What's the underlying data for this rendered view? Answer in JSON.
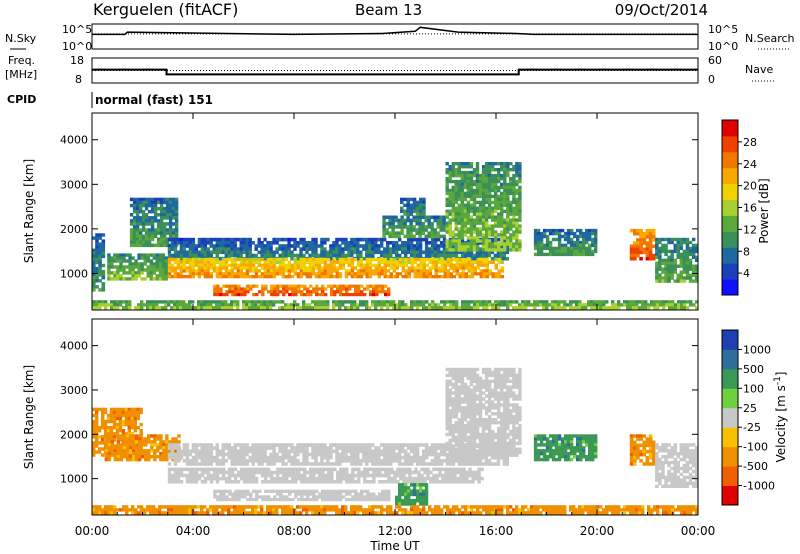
{
  "header": {
    "title": "Kerguelen (fitACF)",
    "beam": "Beam 13",
    "date": "09/Oct/2014"
  },
  "labels": {
    "nsky": "N.Sky",
    "nsearch": "N.Search",
    "freq_line1": "Freq.",
    "freq_line2": "[MHz]",
    "nave": "Nave",
    "cpid": "CPID",
    "program": "normal (fast) 151",
    "xlabel": "Time UT"
  },
  "noise_axis": {
    "left_ticks": [
      "10^5",
      "10^0"
    ],
    "right_ticks": [
      "10^5",
      "10^0"
    ]
  },
  "freq_axis": {
    "left_ticks": [
      "18",
      "8"
    ],
    "right_ticks": [
      "60",
      "0"
    ]
  },
  "chart_data": [
    {
      "type": "line",
      "panel": "noise",
      "x_unit": "hours UT",
      "series": [
        {
          "name": "N.Sky",
          "x": [
            0,
            1.3,
            1.4,
            8,
            11.5,
            12.8,
            13.0,
            14.5,
            16.8,
            17.5,
            24
          ],
          "y": [
            3.1,
            3.1,
            3.6,
            3.1,
            3.3,
            3.8,
            4.7,
            3.6,
            3.3,
            3.1,
            3.1
          ]
        },
        {
          "name": "N.Search",
          "x": [
            0,
            24
          ],
          "y": [
            3.2,
            3.2
          ]
        }
      ]
    },
    {
      "type": "line",
      "panel": "frequency",
      "x_unit": "hours UT",
      "series": [
        {
          "name": "Freq.",
          "x": [
            0,
            2.95,
            2.95,
            16.9,
            16.9,
            24
          ],
          "y": [
            13.4,
            13.4,
            11.3,
            11.3,
            13.4,
            13.4
          ]
        },
        {
          "name": "Nave",
          "x": [
            0,
            24
          ],
          "y": [
            30,
            30
          ]
        }
      ]
    },
    {
      "type": "heatmap",
      "panel": "power",
      "title": "",
      "xlabel": "Time UT",
      "ylabel": "Slant Range [km]",
      "xlim": [
        0,
        24
      ],
      "ylim": [
        180,
        4600
      ],
      "x_ticks": [
        "00:00",
        "04:00",
        "08:00",
        "12:00",
        "16:00",
        "20:00",
        "00:00"
      ],
      "y_ticks": [
        1000,
        2000,
        3000,
        4000
      ],
      "colorbar": {
        "label": "Power [dB]",
        "ticks": [
          4,
          8,
          12,
          16,
          20,
          24,
          28
        ],
        "range": [
          0,
          32
        ],
        "colors": [
          "#1010ff",
          "#1a3fb8",
          "#1e68a0",
          "#3b8f5a",
          "#5aa83c",
          "#a8d030",
          "#f0d200",
          "#f8a800",
          "#f07800",
          "#f04000",
          "#e00000"
        ]
      },
      "regions": [
        {
          "t0": 0.0,
          "t1": 0.5,
          "r0": 600,
          "r1": 1900,
          "v": 8
        },
        {
          "t0": 0.6,
          "t1": 3.0,
          "r0": 850,
          "r1": 1450,
          "v": 12
        },
        {
          "t0": 1.5,
          "t1": 3.4,
          "r0": 1600,
          "r1": 2700,
          "v": 9
        },
        {
          "t0": 3.0,
          "t1": 16.5,
          "r0": 1300,
          "r1": 1800,
          "v": 7
        },
        {
          "t0": 3.0,
          "t1": 16.3,
          "r0": 900,
          "r1": 1350,
          "v": 22
        },
        {
          "t0": 4.8,
          "t1": 11.8,
          "r0": 500,
          "r1": 750,
          "v": 27
        },
        {
          "t0": 11.5,
          "t1": 14.0,
          "r0": 1800,
          "r1": 2300,
          "v": 10
        },
        {
          "t0": 14.0,
          "t1": 17.0,
          "r0": 1500,
          "r1": 3500,
          "v": 12
        },
        {
          "t0": 12.2,
          "t1": 13.2,
          "r0": 2300,
          "r1": 2700,
          "v": 8
        },
        {
          "t0": 17.5,
          "t1": 20.0,
          "r0": 1400,
          "r1": 2000,
          "v": 9
        },
        {
          "t0": 21.3,
          "t1": 22.3,
          "r0": 1300,
          "r1": 2000,
          "v": 26
        },
        {
          "t0": 22.3,
          "t1": 24.0,
          "r0": 800,
          "r1": 1800,
          "v": 10
        },
        {
          "t0": 0.0,
          "t1": 24.0,
          "r0": 200,
          "r1": 400,
          "v": 14
        }
      ]
    },
    {
      "type": "heatmap",
      "panel": "velocity",
      "title": "",
      "xlabel": "Time UT",
      "ylabel": "Slant Range [km]",
      "xlim": [
        0,
        24
      ],
      "ylim": [
        180,
        4600
      ],
      "x_ticks": [
        "00:00",
        "04:00",
        "08:00",
        "12:00",
        "16:00",
        "20:00",
        "00:00"
      ],
      "y_ticks": [
        1000,
        2000,
        3000,
        4000
      ],
      "colorbar": {
        "label": "Velocity [m s^-1]",
        "ticks": [
          "1000",
          "500",
          "100",
          "25",
          "-25",
          "-100",
          "-500",
          "-1000"
        ],
        "colors": [
          "#1e3fb0",
          "#2f6f9a",
          "#3a9a55",
          "#6fd040",
          "#c8c8c8",
          "#f8c000",
          "#f09000",
          "#f06000",
          "#e00000"
        ]
      },
      "regions": [
        {
          "t0": 0.0,
          "t1": 2.0,
          "r0": 1500,
          "r1": 2600,
          "v": -150
        },
        {
          "t0": 0.5,
          "t1": 3.5,
          "r0": 1400,
          "r1": 2000,
          "v": -300
        },
        {
          "t0": 3.0,
          "t1": 16.5,
          "r0": 1300,
          "r1": 1800,
          "v": 0
        },
        {
          "t0": 3.0,
          "t1": 15.5,
          "r0": 900,
          "r1": 1250,
          "v": 0
        },
        {
          "t0": 4.8,
          "t1": 11.8,
          "r0": 500,
          "r1": 750,
          "v": 0
        },
        {
          "t0": 12.0,
          "t1": 13.3,
          "r0": 400,
          "r1": 900,
          "v": 80
        },
        {
          "t0": 14.0,
          "t1": 17.0,
          "r0": 1500,
          "r1": 3500,
          "v": 0
        },
        {
          "t0": 17.5,
          "t1": 20.0,
          "r0": 1400,
          "r1": 2000,
          "v": 150
        },
        {
          "t0": 21.3,
          "t1": 22.3,
          "r0": 1300,
          "r1": 2000,
          "v": -200
        },
        {
          "t0": 22.3,
          "t1": 24.0,
          "r0": 800,
          "r1": 1800,
          "v": 0
        },
        {
          "t0": 0.0,
          "t1": 24.0,
          "r0": 200,
          "r1": 400,
          "v": -300
        }
      ]
    }
  ]
}
